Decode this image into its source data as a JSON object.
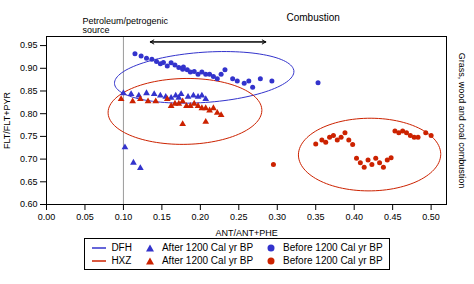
{
  "chart_data": {
    "type": "scatter",
    "xlabel": "ANT/ANT+PHE",
    "ylabel": "FLT/FLT+PYR",
    "xlim": [
      0.0,
      0.52
    ],
    "ylim": [
      0.6,
      0.97
    ],
    "xticks": [
      {
        "value": 0,
        "label": "0.00"
      },
      {
        "value": 0.05,
        "label": "0.05"
      },
      {
        "value": 0.1,
        "label": "0.10"
      },
      {
        "value": 0.15,
        "label": "0.15"
      },
      {
        "value": 0.2,
        "label": "0.20"
      },
      {
        "value": 0.25,
        "label": "0.25"
      },
      {
        "value": 0.3,
        "label": "0.30"
      },
      {
        "value": 0.35,
        "label": "0.35"
      },
      {
        "value": 0.4,
        "label": "0.40"
      },
      {
        "value": 0.45,
        "label": "0.45"
      },
      {
        "value": 0.5,
        "label": "0.50"
      }
    ],
    "yticks": [
      {
        "value": 0.6,
        "label": "0.60"
      },
      {
        "value": 0.65,
        "label": "0.65"
      },
      {
        "value": 0.7,
        "label": "0.70"
      },
      {
        "value": 0.75,
        "label": "0.75"
      },
      {
        "value": 0.8,
        "label": "0.80"
      },
      {
        "value": 0.85,
        "label": "0.85"
      },
      {
        "value": 0.9,
        "label": "0.90"
      },
      {
        "value": 0.95,
        "label": "0.95"
      }
    ],
    "vlines": [
      0.1
    ],
    "arrows": [
      {
        "x1": 0.135,
        "x2": 0.285,
        "y": 0.958
      }
    ],
    "annotations": [
      "Petroleum/petrogenic\nsource",
      "Combustion",
      "Grass, wood and coal combustion"
    ],
    "legend": "bottom",
    "series": [
      {
        "name": "DFH",
        "type": "ellipse",
        "color": "#3333cc",
        "values": [
          {
            "cx": 0.205,
            "cy": 0.88,
            "width": 0.235,
            "height": 0.11,
            "angle": 8
          }
        ]
      },
      {
        "name": "After 1200 Cal yr BP",
        "type": "scatter",
        "marker": "triangle",
        "color": "#3333cc",
        "values": [
          [
            0.1,
            0.845
          ],
          [
            0.11,
            0.843
          ],
          [
            0.12,
            0.84
          ],
          [
            0.13,
            0.845
          ],
          [
            0.14,
            0.843
          ],
          [
            0.148,
            0.84
          ],
          [
            0.155,
            0.837
          ],
          [
            0.162,
            0.835
          ],
          [
            0.168,
            0.84
          ],
          [
            0.175,
            0.843
          ],
          [
            0.172,
            0.835
          ],
          [
            0.184,
            0.837
          ],
          [
            0.191,
            0.84
          ],
          [
            0.197,
            0.837
          ],
          [
            0.202,
            0.84
          ],
          [
            0.207,
            0.832
          ],
          [
            0.102,
            0.726
          ],
          [
            0.113,
            0.692
          ],
          [
            0.122,
            0.68
          ]
        ]
      },
      {
        "name": "Before 1200 Cal yr BP",
        "type": "scatter",
        "marker": "circle",
        "color": "#3333cc",
        "values": [
          [
            0.115,
            0.932
          ],
          [
            0.123,
            0.927
          ],
          [
            0.13,
            0.922
          ],
          [
            0.137,
            0.92
          ],
          [
            0.143,
            0.915
          ],
          [
            0.148,
            0.91
          ],
          [
            0.152,
            0.913
          ],
          [
            0.157,
            0.905
          ],
          [
            0.162,
            0.912
          ],
          [
            0.167,
            0.907
          ],
          [
            0.172,
            0.902
          ],
          [
            0.177,
            0.898
          ],
          [
            0.178,
            0.903
          ],
          [
            0.183,
            0.897
          ],
          [
            0.187,
            0.892
          ],
          [
            0.192,
            0.893
          ],
          [
            0.197,
            0.887
          ],
          [
            0.202,
            0.892
          ],
          [
            0.207,
            0.887
          ],
          [
            0.212,
            0.887
          ],
          [
            0.217,
            0.882
          ],
          [
            0.222,
            0.877
          ],
          [
            0.227,
            0.887
          ],
          [
            0.232,
            0.897
          ],
          [
            0.242,
            0.877
          ],
          [
            0.248,
            0.872
          ],
          [
            0.257,
            0.867
          ],
          [
            0.263,
            0.872
          ],
          [
            0.268,
            0.858
          ],
          [
            0.278,
            0.877
          ],
          [
            0.293,
            0.872
          ],
          [
            0.353,
            0.868
          ]
        ]
      },
      {
        "name": "HXZ",
        "type": "ellipse",
        "color": "#cc2200",
        "values": [
          {
            "cx": 0.18,
            "cy": 0.805,
            "width": 0.2,
            "height": 0.145,
            "angle": 3
          },
          {
            "cx": 0.42,
            "cy": 0.71,
            "width": 0.185,
            "height": 0.16,
            "angle": 2
          }
        ]
      },
      {
        "name": "After 1200 Cal yr BP",
        "type": "scatter",
        "marker": "triangle",
        "color": "#cc2200",
        "values": [
          [
            0.097,
            0.832
          ],
          [
            0.112,
            0.827
          ],
          [
            0.122,
            0.832
          ],
          [
            0.132,
            0.827
          ],
          [
            0.142,
            0.827
          ],
          [
            0.157,
            0.832
          ],
          [
            0.162,
            0.817
          ],
          [
            0.167,
            0.822
          ],
          [
            0.172,
            0.822
          ],
          [
            0.177,
            0.827
          ],
          [
            0.182,
            0.817
          ],
          [
            0.187,
            0.817
          ],
          [
            0.192,
            0.822
          ],
          [
            0.197,
            0.817
          ],
          [
            0.202,
            0.812
          ],
          [
            0.207,
            0.812
          ],
          [
            0.212,
            0.807
          ],
          [
            0.217,
            0.812
          ],
          [
            0.222,
            0.802
          ],
          [
            0.227,
            0.797
          ],
          [
            0.207,
            0.782
          ],
          [
            0.177,
            0.777
          ]
        ]
      },
      {
        "name": "Before 1200 Cal yr BP",
        "type": "scatter",
        "marker": "circle",
        "color": "#cc2200",
        "values": [
          [
            0.295,
            0.688
          ],
          [
            0.35,
            0.733
          ],
          [
            0.358,
            0.742
          ],
          [
            0.363,
            0.737
          ],
          [
            0.368,
            0.748
          ],
          [
            0.373,
            0.752
          ],
          [
            0.378,
            0.742
          ],
          [
            0.383,
            0.748
          ],
          [
            0.388,
            0.758
          ],
          [
            0.393,
            0.742
          ],
          [
            0.398,
            0.732
          ],
          [
            0.403,
            0.702
          ],
          [
            0.408,
            0.692
          ],
          [
            0.413,
            0.682
          ],
          [
            0.418,
            0.698
          ],
          [
            0.423,
            0.688
          ],
          [
            0.428,
            0.702
          ],
          [
            0.433,
            0.692
          ],
          [
            0.438,
            0.682
          ],
          [
            0.443,
            0.698
          ],
          [
            0.448,
            0.703
          ],
          [
            0.453,
            0.762
          ],
          [
            0.458,
            0.758
          ],
          [
            0.463,
            0.762
          ],
          [
            0.468,
            0.758
          ],
          [
            0.473,
            0.752
          ],
          [
            0.478,
            0.748
          ],
          [
            0.483,
            0.748
          ],
          [
            0.493,
            0.758
          ],
          [
            0.5,
            0.752
          ]
        ]
      }
    ]
  }
}
